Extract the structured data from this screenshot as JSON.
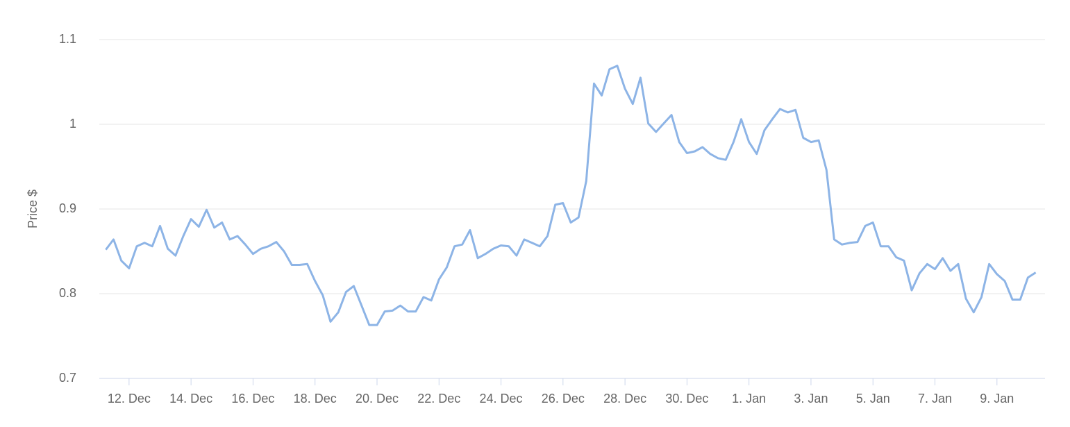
{
  "chart_data": {
    "type": "line",
    "y_label": "Price $",
    "x": [
      -0.75,
      -0.5,
      -0.25,
      0,
      0.25,
      0.5,
      0.75,
      1,
      1.25,
      1.5,
      1.75,
      2,
      2.25,
      2.5,
      2.75,
      3,
      3.25,
      3.5,
      3.75,
      4,
      4.25,
      4.5,
      4.75,
      5,
      5.25,
      5.5,
      5.75,
      6,
      6.25,
      6.5,
      6.75,
      7,
      7.25,
      7.5,
      7.75,
      8,
      8.25,
      8.5,
      8.75,
      9,
      9.25,
      9.5,
      9.75,
      10,
      10.25,
      10.5,
      10.75,
      11,
      11.25,
      11.5,
      11.75,
      12,
      12.25,
      12.5,
      12.75,
      13,
      13.25,
      13.5,
      13.75,
      14,
      14.25,
      14.5,
      14.75,
      15,
      15.25,
      15.5,
      15.75,
      16,
      16.25,
      16.5,
      16.75,
      17,
      17.25,
      17.5,
      17.75,
      18,
      18.25,
      18.5,
      18.75,
      19,
      19.25,
      19.5,
      19.75,
      20,
      20.25,
      20.5,
      20.75,
      21,
      21.25,
      21.5,
      21.75,
      22,
      22.25,
      22.5,
      22.75,
      23,
      23.25,
      23.5,
      23.75,
      24,
      24.25,
      24.5,
      24.75,
      25,
      25.25,
      25.5,
      25.75,
      26,
      26.25,
      26.5,
      26.75,
      27,
      27.25,
      27.5,
      27.75,
      28,
      28.25,
      28.5,
      28.75,
      29,
      29.25
    ],
    "series": [
      {
        "name": "Price",
        "color": "#8db4e6",
        "values": [
          0.852,
          0.864,
          0.839,
          0.83,
          0.856,
          0.86,
          0.856,
          0.88,
          0.853,
          0.845,
          0.868,
          0.888,
          0.879,
          0.899,
          0.878,
          0.884,
          0.864,
          0.868,
          0.858,
          0.847,
          0.853,
          0.856,
          0.861,
          0.85,
          0.834,
          0.834,
          0.835,
          0.815,
          0.798,
          0.767,
          0.778,
          0.802,
          0.809,
          0.786,
          0.763,
          0.763,
          0.779,
          0.78,
          0.786,
          0.779,
          0.779,
          0.796,
          0.792,
          0.817,
          0.831,
          0.856,
          0.858,
          0.875,
          0.842,
          0.847,
          0.853,
          0.857,
          0.856,
          0.845,
          0.864,
          0.86,
          0.856,
          0.868,
          0.905,
          0.907,
          0.884,
          0.89,
          0.933,
          1.048,
          1.034,
          1.065,
          1.069,
          1.042,
          1.024,
          1.055,
          1.001,
          0.991,
          1.001,
          1.011,
          0.979,
          0.966,
          0.968,
          0.973,
          0.965,
          0.96,
          0.958,
          0.979,
          1.006,
          0.979,
          0.965,
          0.993,
          1.006,
          1.018,
          1.014,
          1.017,
          0.984,
          0.979,
          0.981,
          0.946,
          0.864,
          0.858,
          0.86,
          0.861,
          0.88,
          0.884,
          0.856,
          0.856,
          0.843,
          0.839,
          0.804,
          0.824,
          0.835,
          0.829,
          0.842,
          0.827,
          0.835,
          0.794,
          0.778,
          0.796,
          0.835,
          0.823,
          0.815,
          0.793,
          0.793,
          0.819,
          0.825
        ]
      }
    ],
    "xlim": [
      -0.96,
      29.55
    ],
    "xticks": [
      {
        "value": 0,
        "label": "12. Dec"
      },
      {
        "value": 2,
        "label": "14. Dec"
      },
      {
        "value": 4,
        "label": "16. Dec"
      },
      {
        "value": 6,
        "label": "18. Dec"
      },
      {
        "value": 8,
        "label": "20. Dec"
      },
      {
        "value": 10,
        "label": "22. Dec"
      },
      {
        "value": 12,
        "label": "24. Dec"
      },
      {
        "value": 14,
        "label": "26. Dec"
      },
      {
        "value": 16,
        "label": "28. Dec"
      },
      {
        "value": 18,
        "label": "30. Dec"
      },
      {
        "value": 20,
        "label": "1. Jan"
      },
      {
        "value": 22,
        "label": "3. Jan"
      },
      {
        "value": 24,
        "label": "5. Jan"
      },
      {
        "value": 26,
        "label": "7. Jan"
      },
      {
        "value": 28,
        "label": "9. Jan"
      }
    ],
    "ylim": [
      0.7,
      1.1
    ],
    "yticks": [
      0.7,
      0.8,
      0.9,
      1,
      1.1
    ],
    "grid": true
  }
}
